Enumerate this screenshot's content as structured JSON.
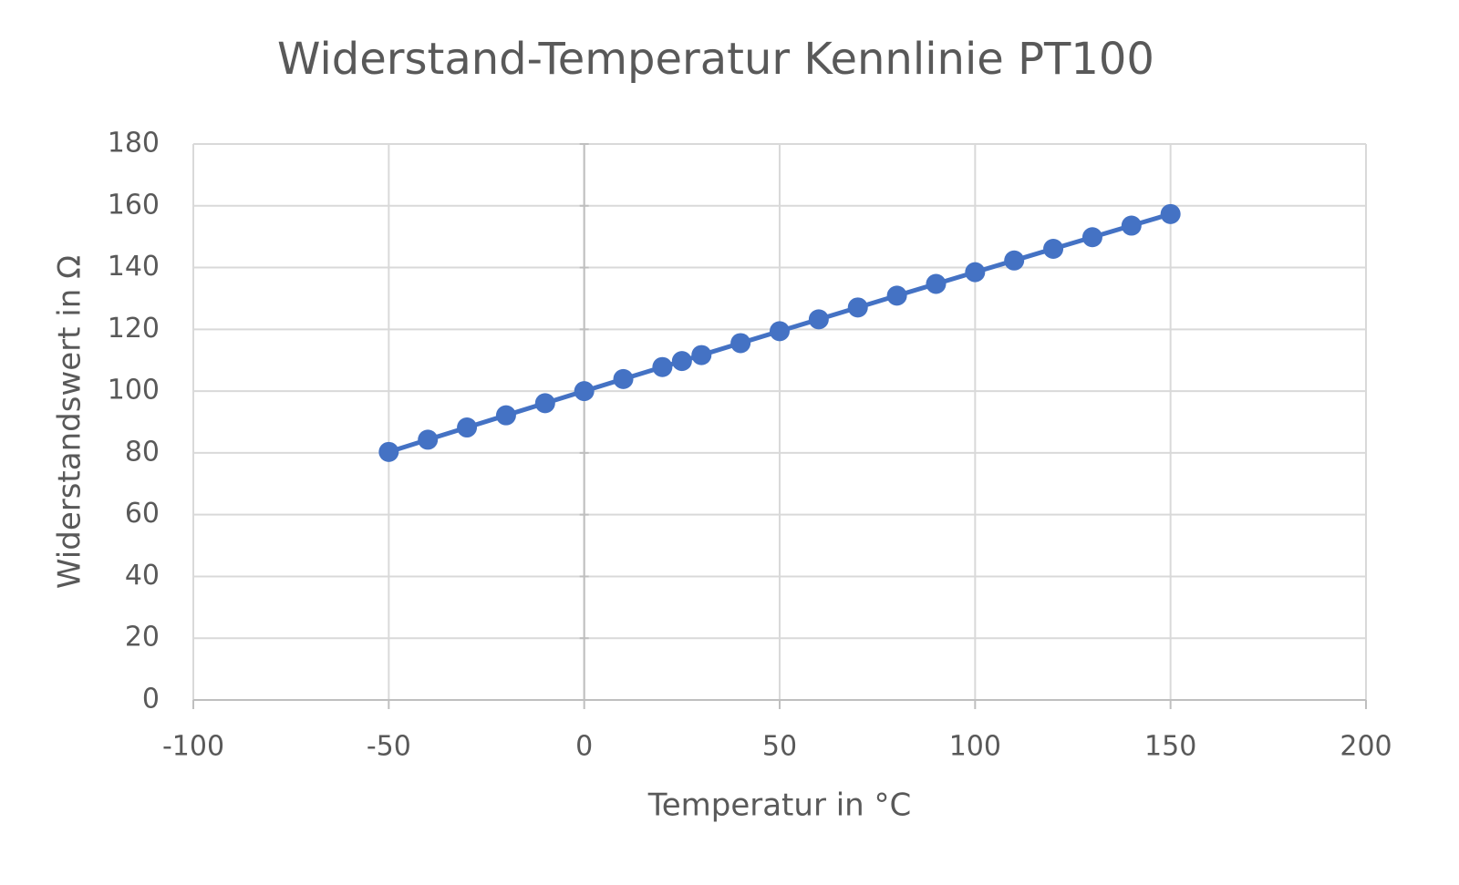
{
  "chart_data": {
    "type": "scatter",
    "title": "Widerstand-Temperatur Kennlinie PT100",
    "x_label": "Temperatur in °C",
    "y_label": "Widerstandswert in Ω",
    "x": [
      -50,
      -40,
      -30,
      -20,
      -10,
      0,
      10,
      20,
      25,
      30,
      40,
      50,
      60,
      70,
      80,
      90,
      100,
      110,
      120,
      130,
      140,
      150
    ],
    "series": [
      {
        "color": "#4472c4",
        "values": [
          80.31,
          84.27,
          88.22,
          92.16,
          96.09,
          100,
          103.9,
          107.79,
          109.73,
          111.67,
          115.54,
          119.4,
          123.24,
          127.08,
          130.9,
          134.71,
          138.51,
          142.29,
          146.07,
          149.83,
          153.58,
          157.33
        ]
      }
    ],
    "line": true,
    "markers": true,
    "xlim": [
      -100,
      200
    ],
    "xticks": [
      -100,
      -50,
      0,
      50,
      100,
      150,
      200
    ],
    "ylim": [
      0,
      180
    ],
    "yticks": [
      0,
      20,
      40,
      60,
      80,
      100,
      120,
      140,
      160,
      180
    ],
    "grid": true
  }
}
